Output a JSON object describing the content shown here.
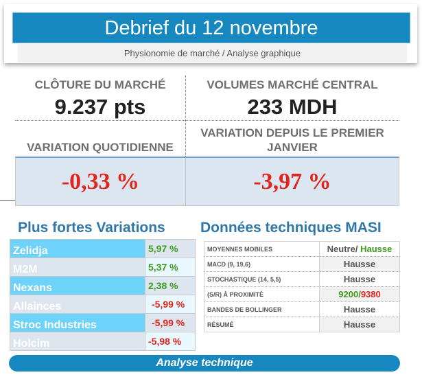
{
  "header": {
    "title": "Debrief du 12 novembre",
    "subtitle": "Physionomie de marché / Analyse graphique"
  },
  "stats": {
    "closing_label": "CLÔTURE DU MARCHÉ",
    "closing_value": "9.237 pts",
    "volume_label": "VOLUMES MARCHÉ CENTRAL",
    "volume_value": "233 MDH",
    "daily_label": "VARIATION QUOTIDIENNE",
    "daily_value": "-0,33 %",
    "ytd_label": "VARIATION DEPUIS LE PREMIER JANVIER",
    "ytd_value": "-3,97 %"
  },
  "variations": {
    "title": "Plus fortes Variations",
    "rows": [
      {
        "name": "Zelidja",
        "value": "5,97 %"
      },
      {
        "name": "M2M",
        "value": "5,37 %"
      },
      {
        "name": "Nexans",
        "value": "2,38 %"
      },
      {
        "name": "Allainces",
        "value": "-5,99 %"
      },
      {
        "name": "Stroc Industries",
        "value": "-5,99 %"
      },
      {
        "name": "Holcim",
        "value": "-5,98 %"
      }
    ]
  },
  "technical": {
    "title": "Données techniques MASI",
    "rows": [
      {
        "label": "MOYENNES MOBILES",
        "value_a": "Neutre/ ",
        "value_b": "Hausse"
      },
      {
        "label": "MACD (9, 19,6)",
        "value": "Hausse"
      },
      {
        "label": "STOCHASTIQUE (14, 5,5)",
        "value": "Hausse"
      },
      {
        "label": "(S/R) À PROXIMITÉ",
        "support": "9200",
        "sep": "/",
        "resistance": "9380"
      },
      {
        "label": "BANDES DE BOLLINGER",
        "value": "Hausse"
      },
      {
        "label": "RÉSUMÉ",
        "value": "Hausse"
      }
    ]
  },
  "footer": {
    "button": "Analyse technique"
  },
  "colors": {
    "accent": "#1688bf",
    "up": "#3e9a1c",
    "down": "#e0261c"
  }
}
